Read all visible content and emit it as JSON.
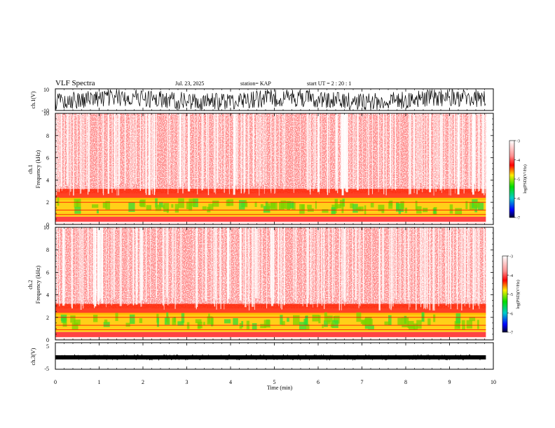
{
  "header": {
    "title": "VLF Spectra",
    "date": "Jul. 23, 2025",
    "station": "station= KAP",
    "start": "start UT = 2 : 20 : 1"
  },
  "chart_data": [
    {
      "type": "line",
      "name": "ch1-waveform",
      "ylabel": "ch.1(V)",
      "ylim": [
        -10,
        10
      ],
      "yticklabels": [
        "10",
        "-10"
      ],
      "xlim": [
        0,
        10
      ]
    },
    {
      "type": "heatmap",
      "name": "ch1-spectrogram",
      "ylabel_line1": "ch.1",
      "ylabel_line2": "Frequency (kHz)",
      "ylim": [
        0,
        10
      ],
      "yticks": [
        0,
        2,
        4,
        6,
        8,
        10
      ],
      "xlim": [
        0,
        10
      ],
      "colorbar": {
        "label": "log(PSD)(V²/Hz)",
        "range": [
          -7,
          -3
        ],
        "ticks": [
          "-3",
          "-4",
          "-5",
          "-6",
          "-7"
        ]
      }
    },
    {
      "type": "heatmap",
      "name": "ch2-spectrogram",
      "ylabel_line1": "ch.2",
      "ylabel_line2": "Frequency (kHz)",
      "ylim": [
        0,
        10
      ],
      "yticks": [
        0,
        2,
        4,
        6,
        8,
        10
      ],
      "xlim": [
        0,
        10
      ],
      "colorbar": {
        "label": "log(PSD)(V²/Hz)",
        "range": [
          -7,
          -3
        ],
        "ticks": [
          "-3",
          "-4",
          "-5",
          "-6",
          "-7"
        ]
      }
    },
    {
      "type": "line",
      "name": "ch3-waveform",
      "ylabel": "ch.3(V)",
      "ylim": [
        -5,
        5
      ],
      "yticklabels": [
        "5",
        "-5"
      ],
      "xlim": [
        0,
        10
      ],
      "xlabel": "Time (min)",
      "xticks": [
        0,
        1,
        2,
        3,
        4,
        5,
        6,
        7,
        8,
        9,
        10
      ],
      "data_end_min": 9.83
    }
  ]
}
